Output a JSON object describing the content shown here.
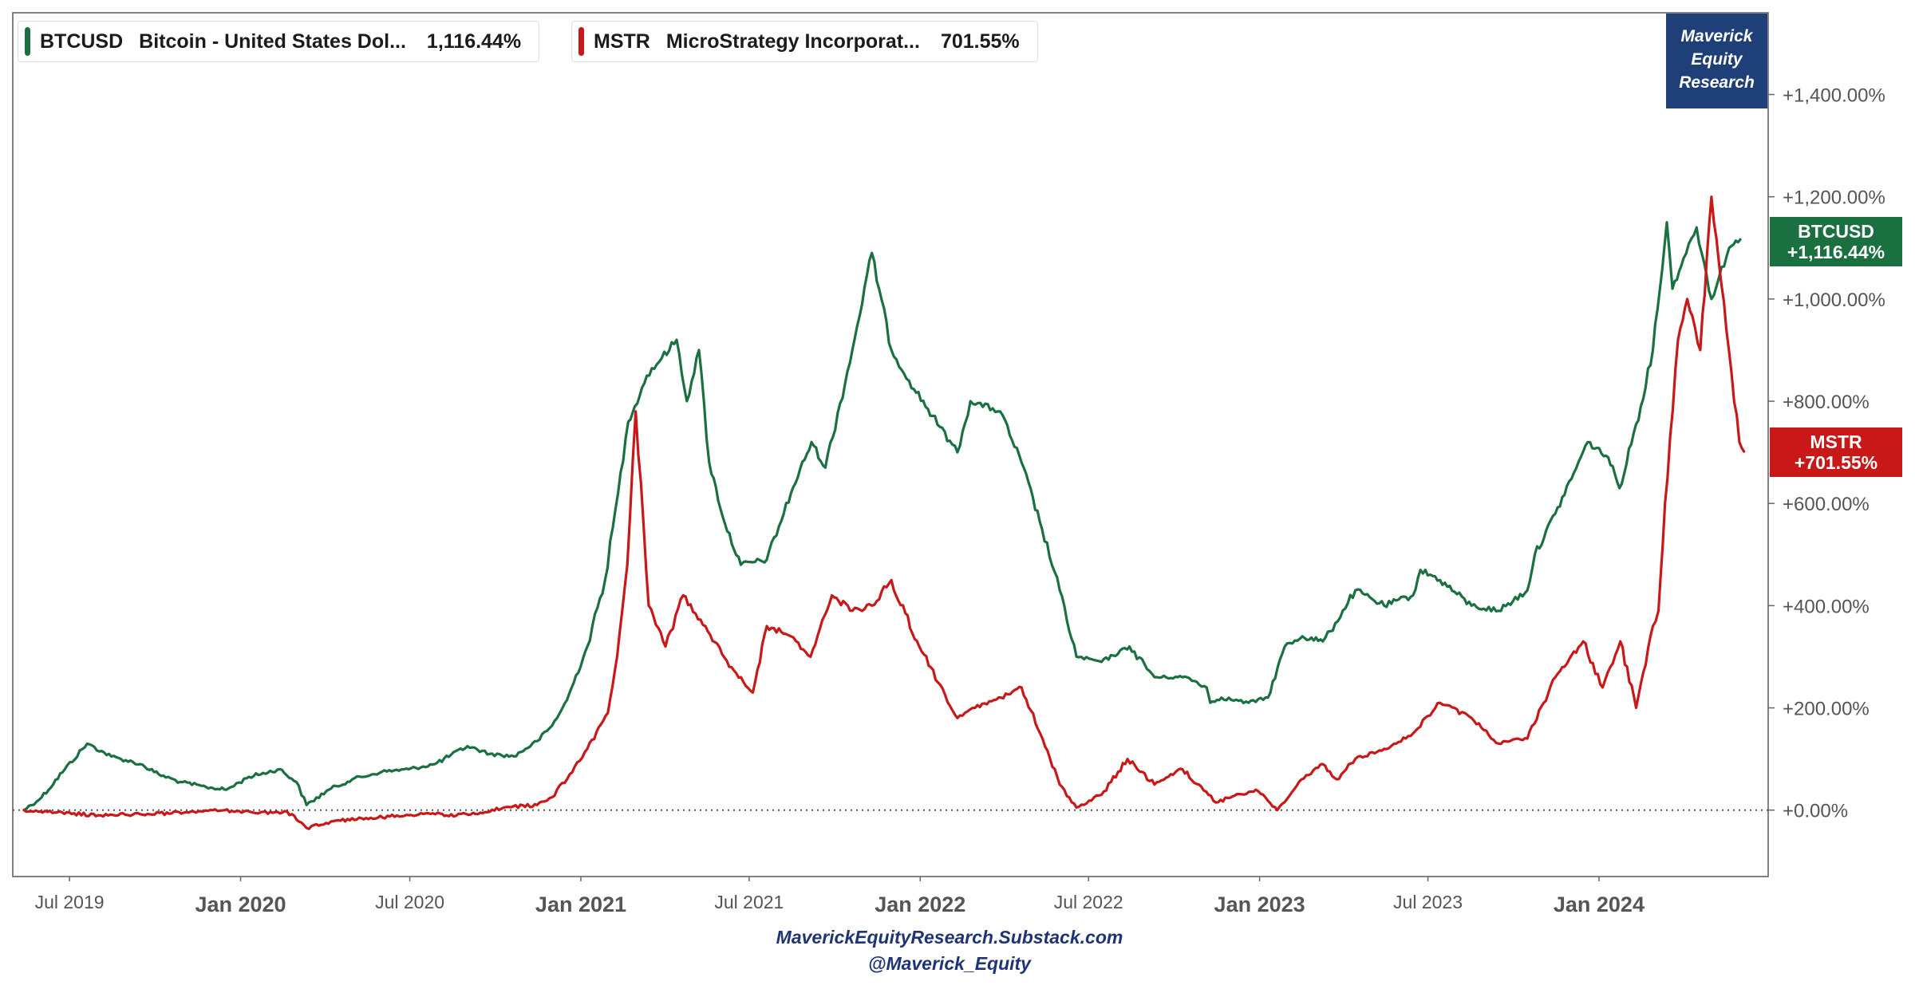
{
  "legend": [
    {
      "symbol": "BTCUSD",
      "description": "Bitcoin - United States Dol...",
      "value": "1,116.44%",
      "color": "#1a7040"
    },
    {
      "symbol": "MSTR",
      "description": "MicroStrategy Incorporat...",
      "value": "701.55%",
      "color": "#c81818"
    }
  ],
  "logo": {
    "line1": "Maverick",
    "line2": "Equity",
    "line3": "Research"
  },
  "end_labels": {
    "btc": {
      "symbol": "BTCUSD",
      "value": "+1,116.44%"
    },
    "mstr": {
      "symbol": "MSTR",
      "value": "+701.55%"
    }
  },
  "footer": {
    "site": "MaverickEquityResearch.Substack.com",
    "handle": "@Maverick_Equity"
  },
  "colors": {
    "btc": "#1a7040",
    "mstr": "#c81818",
    "logo_bg": "#1f3f79",
    "footer": "#1f3377"
  },
  "chart_data": {
    "type": "line",
    "title": "",
    "xlabel": "",
    "ylabel": "",
    "ylim": [
      -130,
      1560
    ],
    "x_range": [
      "2019-05-01",
      "2024-07-01"
    ],
    "x_ticks": [
      {
        "date": "2019-07-01",
        "label": "Jul 2019",
        "major": false
      },
      {
        "date": "2020-01-01",
        "label": "Jan 2020",
        "major": true
      },
      {
        "date": "2020-07-01",
        "label": "Jul 2020",
        "major": false
      },
      {
        "date": "2021-01-01",
        "label": "Jan 2021",
        "major": true
      },
      {
        "date": "2021-07-01",
        "label": "Jul 2021",
        "major": false
      },
      {
        "date": "2022-01-01",
        "label": "Jan 2022",
        "major": true
      },
      {
        "date": "2022-07-01",
        "label": "Jul 2022",
        "major": false
      },
      {
        "date": "2023-01-01",
        "label": "Jan 2023",
        "major": true
      },
      {
        "date": "2023-07-01",
        "label": "Jul 2023",
        "major": false
      },
      {
        "date": "2024-01-01",
        "label": "Jan 2024",
        "major": true
      }
    ],
    "y_ticks": [
      {
        "value": 0,
        "label": "+0.00%"
      },
      {
        "value": 200,
        "label": "+200.00%"
      },
      {
        "value": 400,
        "label": "+400.00%"
      },
      {
        "value": 600,
        "label": "+600.00%"
      },
      {
        "value": 800,
        "label": "+800.00%"
      },
      {
        "value": 1000,
        "label": "+1,000.00%"
      },
      {
        "value": 1200,
        "label": "+1,200.00%"
      },
      {
        "value": 1400,
        "label": "+1,400.00%"
      }
    ],
    "zero_line": true,
    "grid": false,
    "legend_position": "top-left",
    "series": [
      {
        "name": "BTCUSD",
        "color": "#1a7040",
        "x": [
          "2019-05-13",
          "2019-06-01",
          "2019-06-26",
          "2019-07-20",
          "2019-08-15",
          "2019-09-15",
          "2019-10-05",
          "2019-10-28",
          "2019-11-25",
          "2019-12-17",
          "2020-01-10",
          "2020-02-12",
          "2020-03-01",
          "2020-03-12",
          "2020-04-05",
          "2020-04-30",
          "2020-06-01",
          "2020-06-30",
          "2020-07-28",
          "2020-09-01",
          "2020-09-25",
          "2020-10-21",
          "2020-11-15",
          "2020-12-01",
          "2020-12-17",
          "2021-01-08",
          "2021-01-27",
          "2021-02-10",
          "2021-02-21",
          "2021-02-28",
          "2021-03-13",
          "2021-04-14",
          "2021-04-25",
          "2021-05-08",
          "2021-05-19",
          "2021-06-05",
          "2021-06-22",
          "2021-07-20",
          "2021-08-15",
          "2021-09-06",
          "2021-09-21",
          "2021-10-20",
          "2021-11-10",
          "2021-12-01",
          "2021-12-20",
          "2022-01-22",
          "2022-02-10",
          "2022-02-24",
          "2022-03-28",
          "2022-04-20",
          "2022-05-12",
          "2022-05-31",
          "2022-06-18",
          "2022-07-15",
          "2022-08-14",
          "2022-09-10",
          "2022-10-15",
          "2022-11-05",
          "2022-11-09",
          "2022-11-21",
          "2022-12-20",
          "2023-01-10",
          "2023-01-28",
          "2023-02-16",
          "2023-03-10",
          "2023-03-18",
          "2023-04-14",
          "2023-05-15",
          "2023-06-15",
          "2023-06-23",
          "2023-07-14",
          "2023-08-17",
          "2023-09-15",
          "2023-10-16",
          "2023-10-24",
          "2023-11-15",
          "2023-12-05",
          "2023-12-20",
          "2024-01-11",
          "2024-01-23",
          "2024-02-15",
          "2024-02-28",
          "2024-03-14",
          "2024-03-20",
          "2024-04-01",
          "2024-04-15",
          "2024-05-01",
          "2024-05-20",
          "2024-06-01"
        ],
        "values": [
          0,
          25,
          80,
          130,
          105,
          90,
          70,
          55,
          45,
          40,
          65,
          80,
          55,
          10,
          40,
          60,
          75,
          80,
          90,
          125,
          110,
          105,
          135,
          165,
          215,
          320,
          450,
          620,
          760,
          790,
          850,
          920,
          800,
          900,
          680,
          560,
          480,
          490,
          620,
          720,
          670,
          900,
          1090,
          900,
          840,
          750,
          700,
          800,
          780,
          680,
          550,
          430,
          300,
          290,
          320,
          260,
          260,
          240,
          210,
          220,
          210,
          220,
          320,
          340,
          330,
          350,
          430,
          400,
          420,
          470,
          450,
          400,
          390,
          430,
          500,
          580,
          660,
          720,
          690,
          630,
          790,
          900,
          1150,
          1020,
          1080,
          1140,
          1000,
          1100,
          1116.44
        ]
      },
      {
        "name": "MSTR",
        "color": "#c81818",
        "x": [
          "2019-05-13",
          "2019-06-15",
          "2019-08-01",
          "2019-09-15",
          "2019-11-01",
          "2019-12-15",
          "2020-01-15",
          "2020-02-20",
          "2020-03-12",
          "2020-04-15",
          "2020-05-20",
          "2020-06-30",
          "2020-07-31",
          "2020-08-12",
          "2020-09-15",
          "2020-10-10",
          "2020-11-15",
          "2020-12-01",
          "2020-12-20",
          "2021-01-08",
          "2021-01-30",
          "2021-02-09",
          "2021-02-20",
          "2021-03-01",
          "2021-03-15",
          "2021-04-02",
          "2021-04-21",
          "2021-05-15",
          "2021-06-12",
          "2021-07-05",
          "2021-07-20",
          "2021-08-15",
          "2021-09-05",
          "2021-09-28",
          "2021-10-20",
          "2021-11-10",
          "2021-12-01",
          "2021-12-31",
          "2022-01-20",
          "2022-02-10",
          "2022-03-01",
          "2022-03-29",
          "2022-04-20",
          "2022-05-10",
          "2022-05-31",
          "2022-06-18",
          "2022-07-15",
          "2022-08-12",
          "2022-09-10",
          "2022-10-10",
          "2022-11-07",
          "2022-11-15",
          "2022-12-28",
          "2023-01-20",
          "2023-02-15",
          "2023-03-10",
          "2023-03-25",
          "2023-04-14",
          "2023-05-15",
          "2023-06-15",
          "2023-07-14",
          "2023-08-17",
          "2023-09-15",
          "2023-10-16",
          "2023-11-15",
          "2023-12-15",
          "2024-01-05",
          "2024-01-24",
          "2024-02-10",
          "2024-02-28",
          "2024-03-05",
          "2024-03-12",
          "2024-03-26",
          "2024-04-05",
          "2024-04-19",
          "2024-05-01",
          "2024-05-17",
          "2024-05-31",
          "2024-06-05"
        ],
        "values": [
          0,
          -5,
          -10,
          -8,
          -5,
          0,
          -5,
          -3,
          -35,
          -20,
          -15,
          -10,
          -5,
          -12,
          -5,
          5,
          10,
          25,
          70,
          120,
          190,
          300,
          480,
          780,
          400,
          320,
          420,
          360,
          280,
          230,
          360,
          340,
          300,
          420,
          390,
          400,
          450,
          320,
          250,
          180,
          200,
          220,
          240,
          150,
          50,
          5,
          30,
          100,
          50,
          80,
          30,
          15,
          40,
          0,
          60,
          90,
          60,
          100,
          120,
          150,
          210,
          180,
          130,
          140,
          260,
          330,
          240,
          330,
          200,
          360,
          390,
          600,
          920,
          1000,
          900,
          1200,
          940,
          720,
          701.55
        ]
      }
    ]
  }
}
